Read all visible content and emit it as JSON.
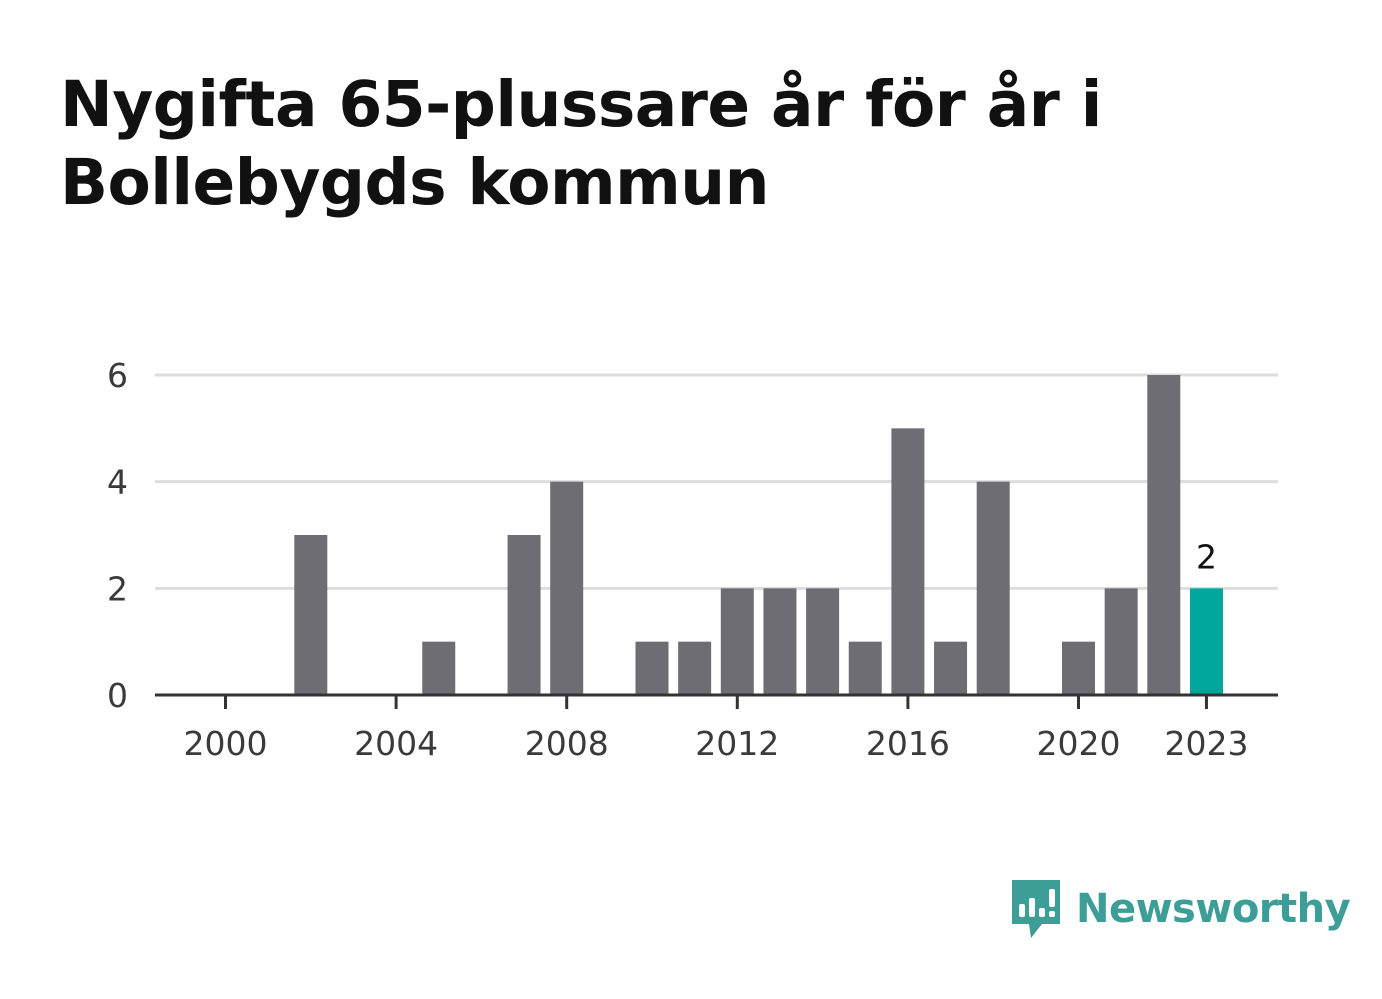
{
  "title": "Nygifta 65-plussare år för år i Bollebygds kommun",
  "brand": {
    "name": "Newsworthy",
    "icon": "bar-chart-speech-bubble-icon",
    "color": "#3d9e98"
  },
  "chart_data": {
    "type": "bar",
    "title": "Nygifta 65-plussare år för år i Bollebygds kommun",
    "xlabel": "",
    "ylabel": "",
    "categories": [
      "2000",
      "2001",
      "2002",
      "2003",
      "2004",
      "2005",
      "2006",
      "2007",
      "2008",
      "2009",
      "2010",
      "2011",
      "2012",
      "2013",
      "2014",
      "2015",
      "2016",
      "2017",
      "2018",
      "2019",
      "2020",
      "2021",
      "2022",
      "2023"
    ],
    "values": [
      0,
      0,
      3,
      0,
      0,
      1,
      0,
      3,
      4,
      0,
      1,
      1,
      2,
      2,
      2,
      1,
      5,
      1,
      4,
      0,
      1,
      2,
      6,
      2
    ],
    "x_ticks": [
      "2000",
      "2004",
      "2008",
      "2012",
      "2016",
      "2020",
      "2023"
    ],
    "y_ticks": [
      0,
      2,
      4,
      6
    ],
    "ylim": [
      0,
      6
    ],
    "grid": true,
    "highlight": {
      "category": "2023",
      "label": "2"
    },
    "colors": {
      "bar": "#6e6d73",
      "highlight": "#00a59b",
      "grid": "#dddddd",
      "axis": "#333333"
    }
  }
}
